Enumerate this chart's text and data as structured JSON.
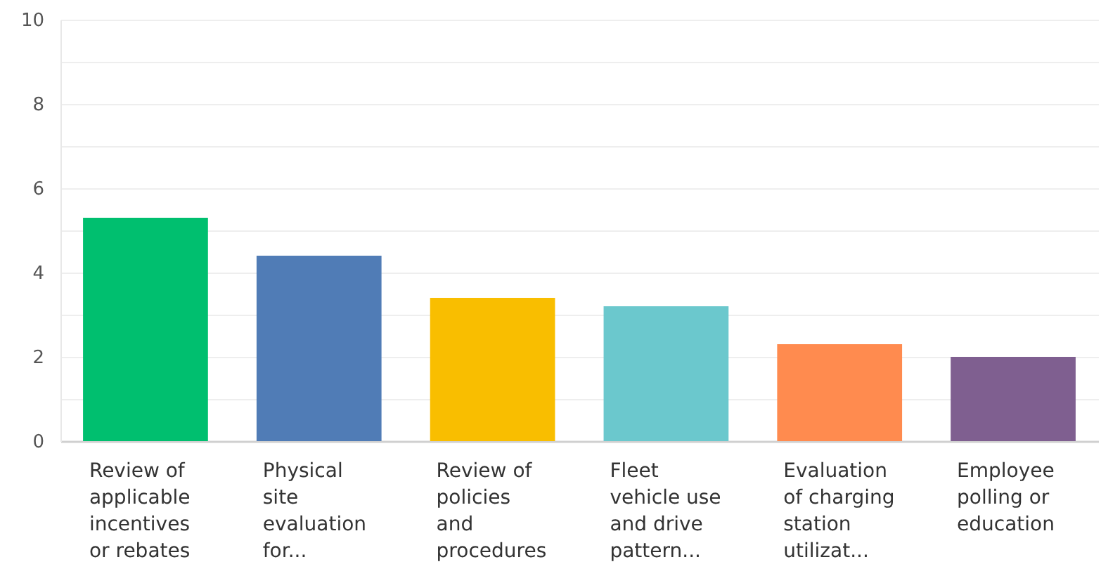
{
  "chart_data": {
    "type": "bar",
    "categories": [
      "Review of applicable incentives or rebates",
      "Physical site evaluation for...",
      "Review of policies and procedures",
      "Fleet vehicle use and drive pattern...",
      "Evaluation of charging station utilizat...",
      "Employee polling or education"
    ],
    "values": [
      5.3,
      4.4,
      3.4,
      3.2,
      2.3,
      2.0
    ],
    "colors": [
      "#00bf6f",
      "#507cb6",
      "#f9be00",
      "#6bc8cd",
      "#ff8b4f",
      "#7f5f90"
    ],
    "ylim": [
      0,
      10
    ],
    "yticks": [
      0,
      {
        "value": 1,
        "label": null
      },
      2,
      {
        "value": 3,
        "label": null
      },
      4,
      {
        "value": 5,
        "label": null
      },
      6,
      {
        "value": 7,
        "label": null
      },
      8,
      {
        "value": 9,
        "label": null
      },
      10
    ],
    "grid": "y"
  }
}
